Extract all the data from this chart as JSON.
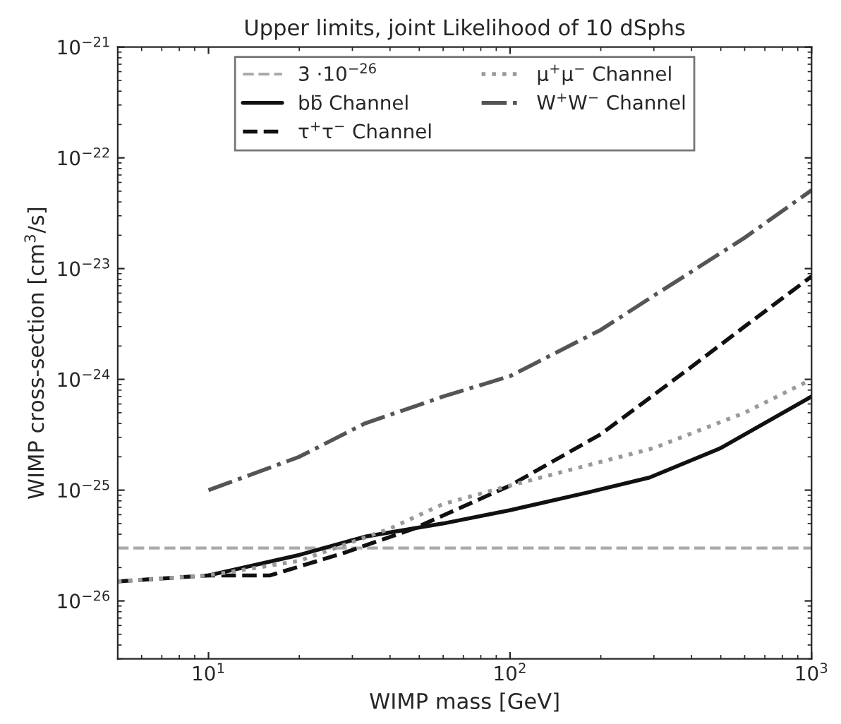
{
  "chart_data": {
    "type": "line",
    "title": "Upper limits, joint Likelihood of 10 dSphs",
    "xlabel": "WIMP mass [GeV]",
    "ylabel": "WIMP cross-section [cm$^{3}$/s]",
    "log": "xy",
    "xlim": [
      5,
      1000
    ],
    "ylim": [
      3e-27,
      1e-21
    ],
    "xticks": [
      {
        "value": 10,
        "label": "10$^{1}$"
      },
      {
        "value": 100,
        "label": "10$^{2}$"
      },
      {
        "value": 1000,
        "label": "10$^{3}$"
      }
    ],
    "yticks": [
      {
        "value": 1e-26,
        "label": "10$^{−26}$"
      },
      {
        "value": 1e-25,
        "label": "10$^{−25}$"
      },
      {
        "value": 1e-24,
        "label": "10$^{−24}$"
      },
      {
        "value": 1e-23,
        "label": "10$^{−23}$"
      },
      {
        "value": 1e-22,
        "label": "10$^{−22}$"
      },
      {
        "value": 1e-21,
        "label": "10$^{−21}$"
      }
    ],
    "ref_lines": [
      {
        "axis": "y",
        "value": 3e-26,
        "label": "3 ·10$^{−26}$",
        "color": "#aaaaaa",
        "line_style": "dashed"
      }
    ],
    "series": [
      {
        "name": "bb̄ Channel",
        "color": "#111111",
        "line_style": "solid",
        "x": [
          10,
          20,
          33,
          60,
          100,
          180,
          290,
          500,
          1000
        ],
        "values": [
          1.7e-26,
          2.6e-26,
          3.8e-26,
          5e-26,
          6.6e-26,
          9.5e-26,
          1.3e-25,
          2.4e-25,
          7e-25
        ]
      },
      {
        "name": "τ$^{+}$τ$^{−}$ Channel",
        "color": "#111111",
        "line_style": "dashed",
        "x": [
          5,
          10,
          16,
          28,
          48,
          100,
          200,
          400,
          590,
          1000
        ],
        "values": [
          1.5e-26,
          1.7e-26,
          1.7e-26,
          2.7e-26,
          4.5e-26,
          1.1e-25,
          3.2e-25,
          1.3e-24,
          2.9e-24,
          8.5e-24
        ]
      },
      {
        "name": "μ$^{+}$μ$^{−}$ Channel",
        "color": "#999999",
        "line_style": "dotted",
        "x": [
          5,
          10,
          20,
          40,
          60,
          100,
          300,
          600,
          1000
        ],
        "values": [
          1.5e-26,
          1.7e-26,
          2.3e-26,
          4.5e-26,
          7.5e-26,
          1.1e-25,
          2.4e-25,
          5e-25,
          1e-24
        ]
      },
      {
        "name": "W$^{+}$W$^{−}$ Channel",
        "color": "#555555",
        "line_style": "dashdot",
        "x": [
          10,
          20,
          33,
          60,
          100,
          200,
          300,
          600,
          1000
        ],
        "values": [
          1e-25,
          2e-25,
          4e-25,
          7e-25,
          1.07e-24,
          2.8e-24,
          5.7e-24,
          1.9e-23,
          5.1e-23
        ]
      }
    ],
    "grid": false,
    "legend": "top"
  }
}
